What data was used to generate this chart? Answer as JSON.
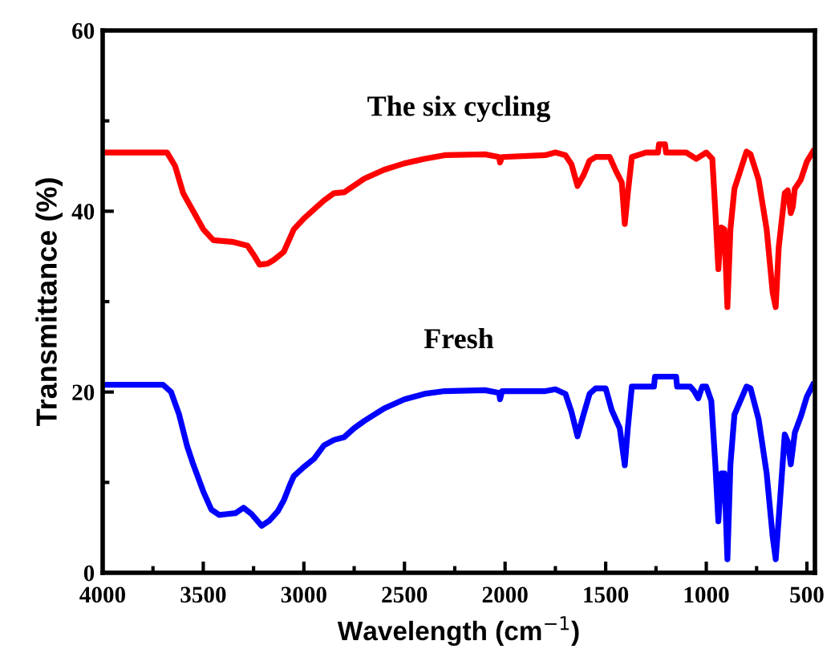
{
  "chart_data": {
    "type": "line",
    "xlabel": "Wavelength (cm$^{−1}$)",
    "ylabel": "Transmittance (%)",
    "xlim": [
      4000,
      460
    ],
    "ylim": [
      0,
      60
    ],
    "xticks": [
      4000,
      3500,
      3000,
      2500,
      2000,
      1500,
      1000,
      500
    ],
    "yticks": [
      0,
      20,
      40,
      60
    ],
    "grid": false,
    "legend": false,
    "marker": "none",
    "line_style": "solid",
    "series": [
      {
        "name": "The six cycling",
        "color": "#ff0000",
        "x": [
          4000,
          3680,
          3640,
          3600,
          3550,
          3500,
          3450,
          3350,
          3280,
          3250,
          3220,
          3180,
          3150,
          3100,
          3070,
          3050,
          3000,
          2900,
          2850,
          2800,
          2700,
          2600,
          2500,
          2400,
          2300,
          2100,
          2030,
          2025,
          2015,
          1800,
          1750,
          1700,
          1670,
          1640,
          1610,
          1580,
          1550,
          1480,
          1450,
          1420,
          1405,
          1390,
          1370,
          1300,
          1240,
          1235,
          1205,
          1200,
          1100,
          1050,
          1000,
          970,
          955,
          940,
          925,
          910,
          895,
          880,
          860,
          800,
          780,
          740,
          700,
          670,
          655,
          640,
          610,
          595,
          580,
          570,
          560,
          530,
          500,
          470
        ],
        "values": [
          46.5,
          46.5,
          45,
          42,
          40,
          38,
          36.8,
          36.6,
          36.2,
          35.2,
          34.1,
          34.2,
          34.6,
          35.5,
          37,
          38,
          39.2,
          41.2,
          42,
          42.1,
          43.6,
          44.6,
          45.3,
          45.8,
          46.2,
          46.3,
          46,
          45.4,
          46,
          46.2,
          46.5,
          46.2,
          45.2,
          42.8,
          44,
          45.6,
          46,
          46,
          44.5,
          43.2,
          38.6,
          42,
          46,
          46.5,
          46.5,
          47.4,
          47.4,
          46.5,
          46.5,
          45.8,
          46.5,
          45.8,
          40,
          33.6,
          38.2,
          38,
          29.4,
          38,
          42.5,
          46.6,
          46.3,
          43.5,
          38,
          31,
          29.4,
          36,
          42,
          42.3,
          39.8,
          40.5,
          42.5,
          43.5,
          45.5,
          46.6
        ]
      },
      {
        "name": "Fresh",
        "color": "#0000ff",
        "x": [
          4000,
          3700,
          3660,
          3620,
          3580,
          3550,
          3500,
          3460,
          3420,
          3380,
          3340,
          3300,
          3260,
          3210,
          3170,
          3130,
          3100,
          3070,
          3050,
          3000,
          2950,
          2900,
          2850,
          2800,
          2750,
          2700,
          2600,
          2500,
          2400,
          2300,
          2100,
          2030,
          2025,
          2015,
          1800,
          1750,
          1700,
          1670,
          1640,
          1610,
          1580,
          1550,
          1500,
          1470,
          1430,
          1405,
          1390,
          1370,
          1300,
          1260,
          1255,
          1150,
          1145,
          1080,
          1060,
          1040,
          1020,
          1000,
          975,
          955,
          940,
          925,
          910,
          895,
          880,
          860,
          800,
          780,
          740,
          700,
          670,
          655,
          640,
          610,
          595,
          580,
          560,
          530,
          500,
          470
        ],
        "values": [
          20.8,
          20.8,
          20,
          17.5,
          14,
          12,
          9,
          7,
          6.4,
          6.5,
          6.6,
          7.2,
          6.5,
          5.2,
          5.8,
          6.8,
          8,
          9.7,
          10.7,
          11.7,
          12.6,
          14.1,
          14.7,
          15,
          16,
          16.8,
          18.2,
          19.2,
          19.8,
          20.1,
          20.2,
          19.9,
          19.2,
          20.1,
          20.1,
          20.3,
          19.8,
          17.8,
          15.1,
          17.5,
          19.8,
          20.4,
          20.4,
          18,
          16,
          11.9,
          16,
          20.6,
          20.6,
          20.6,
          21.7,
          21.7,
          20.6,
          20.6,
          20.1,
          19.3,
          20.6,
          20.6,
          19,
          12,
          5.7,
          11,
          11,
          1.5,
          12,
          17.5,
          20.6,
          20.4,
          17,
          11,
          4,
          1.5,
          6,
          15.3,
          14.5,
          12,
          15.5,
          17.3,
          19.5,
          20.8
        ]
      }
    ]
  }
}
